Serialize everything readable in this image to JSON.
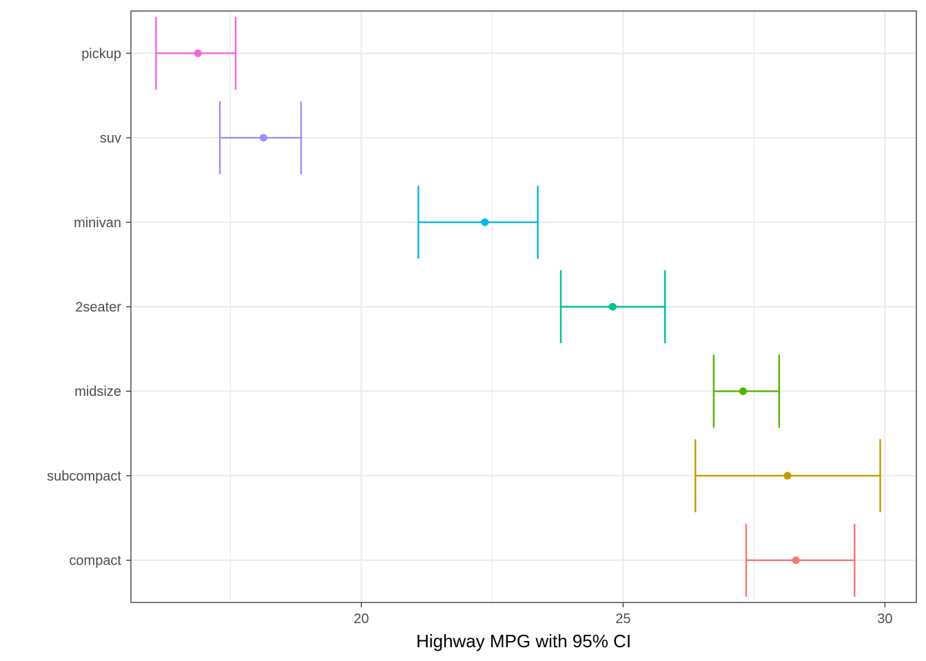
{
  "chart_data": {
    "type": "errorbar",
    "title": "",
    "xlabel": "Highway MPG with 95% CI",
    "ylabel": "",
    "xlim": [
      15.6,
      30.6
    ],
    "x_ticks": [
      20,
      25,
      30
    ],
    "grid": true,
    "legend": "none",
    "categories": [
      "compact",
      "subcompact",
      "midsize",
      "2seater",
      "minivan",
      "suv",
      "pickup"
    ],
    "series": [
      {
        "category": "compact",
        "mean": 28.3,
        "lower": 27.35,
        "upper": 29.42,
        "color": "#F8766D"
      },
      {
        "category": "subcompact",
        "mean": 28.14,
        "lower": 26.38,
        "upper": 29.91,
        "color": "#C49A00"
      },
      {
        "category": "midsize",
        "mean": 27.29,
        "lower": 26.73,
        "upper": 27.98,
        "color": "#53B400"
      },
      {
        "category": "2seater",
        "mean": 24.8,
        "lower": 23.81,
        "upper": 25.8,
        "color": "#00C094"
      },
      {
        "category": "minivan",
        "mean": 22.36,
        "lower": 21.09,
        "upper": 23.37,
        "color": "#00B6EB"
      },
      {
        "category": "suv",
        "mean": 18.13,
        "lower": 17.3,
        "upper": 18.85,
        "color": "#A58AFF"
      },
      {
        "category": "pickup",
        "mean": 16.88,
        "lower": 16.08,
        "upper": 17.6,
        "color": "#FB61D7"
      }
    ]
  }
}
